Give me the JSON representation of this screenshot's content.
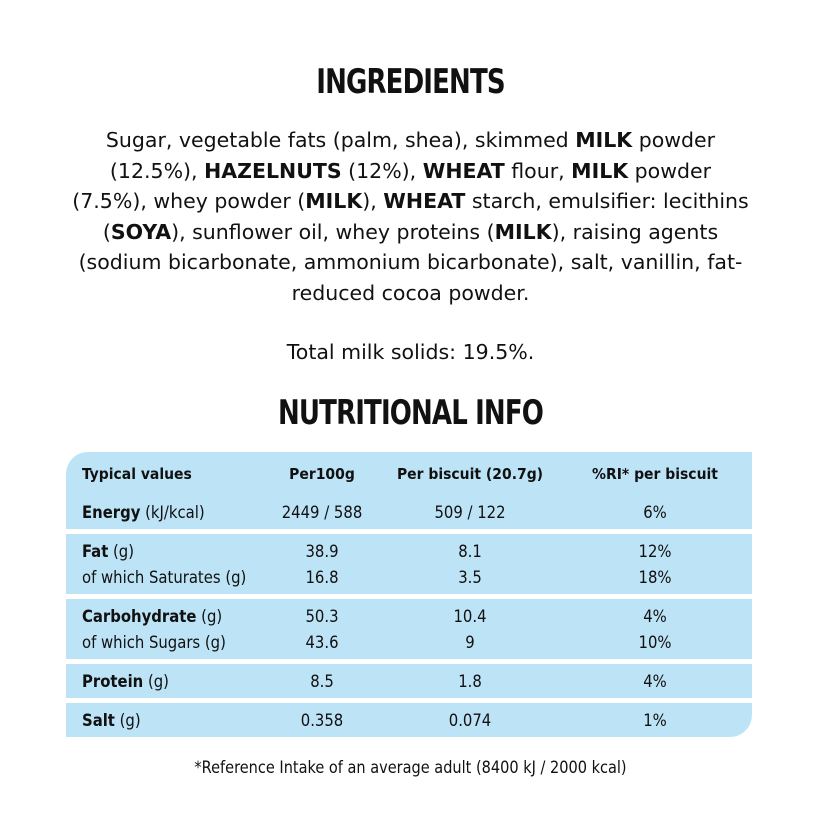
{
  "ingredients": {
    "title": "INGREDIENTS",
    "runs": [
      {
        "text": "Sugar, vegetable fats (palm, shea), skimmed ",
        "bold": false
      },
      {
        "text": "MILK",
        "bold": true
      },
      {
        "text": " powder (12.5%), ",
        "bold": false
      },
      {
        "text": "HAZELNUTS",
        "bold": true
      },
      {
        "text": " (12%), ",
        "bold": false
      },
      {
        "text": "WHEAT",
        "bold": true
      },
      {
        "text": " flour, ",
        "bold": false
      },
      {
        "text": "MILK",
        "bold": true
      },
      {
        "text": " powder (7.5%), whey powder (",
        "bold": false
      },
      {
        "text": "MILK",
        "bold": true
      },
      {
        "text": "), ",
        "bold": false
      },
      {
        "text": "WHEAT",
        "bold": true
      },
      {
        "text": " starch, emulsifier: lecithins (",
        "bold": false
      },
      {
        "text": "SOYA",
        "bold": true
      },
      {
        "text": "), sunflower oil, whey proteins (",
        "bold": false
      },
      {
        "text": "MILK",
        "bold": true
      },
      {
        "text": "), raising agents (sodium bicarbonate, ammonium bicarbonate), salt, vanillin, fat-reduced cocoa powder.",
        "bold": false
      }
    ],
    "milk_solids": "Total milk solids: 19.5%."
  },
  "nutrition": {
    "title": "NUTRITIONAL INFO",
    "header": [
      "Typical values",
      "Per100g",
      "Per biscuit (20.7g)",
      "%RI* per biscuit"
    ],
    "groups": [
      {
        "rows": [
          {
            "label": "Energy",
            "unit": "(kJ/kcal)",
            "bold": true,
            "values": [
              "2449 / 588",
              "509 / 122",
              "6%"
            ]
          }
        ]
      },
      {
        "rows": [
          {
            "label": "Fat",
            "unit": "(g)",
            "bold": true,
            "values": [
              "38.9",
              "8.1",
              "12%"
            ]
          },
          {
            "label": "of which Saturates",
            "unit": "(g)",
            "bold": false,
            "values": [
              "16.8",
              "3.5",
              "18%"
            ]
          }
        ]
      },
      {
        "rows": [
          {
            "label": "Carbohydrate",
            "unit": "(g)",
            "bold": true,
            "values": [
              "50.3",
              "10.4",
              "4%"
            ]
          },
          {
            "label": "of which Sugars",
            "unit": "(g)",
            "bold": false,
            "values": [
              "43.6",
              "9",
              "10%"
            ]
          }
        ]
      },
      {
        "rows": [
          {
            "label": "Protein",
            "unit": "(g)",
            "bold": true,
            "values": [
              "8.5",
              "1.8",
              "4%"
            ]
          }
        ]
      },
      {
        "rows": [
          {
            "label": "Salt",
            "unit": "(g)",
            "bold": true,
            "values": [
              "0.358",
              "0.074",
              "1%"
            ]
          }
        ]
      }
    ],
    "footnote": "*Reference Intake of an average adult (8400 kJ / 2000 kcal)"
  }
}
